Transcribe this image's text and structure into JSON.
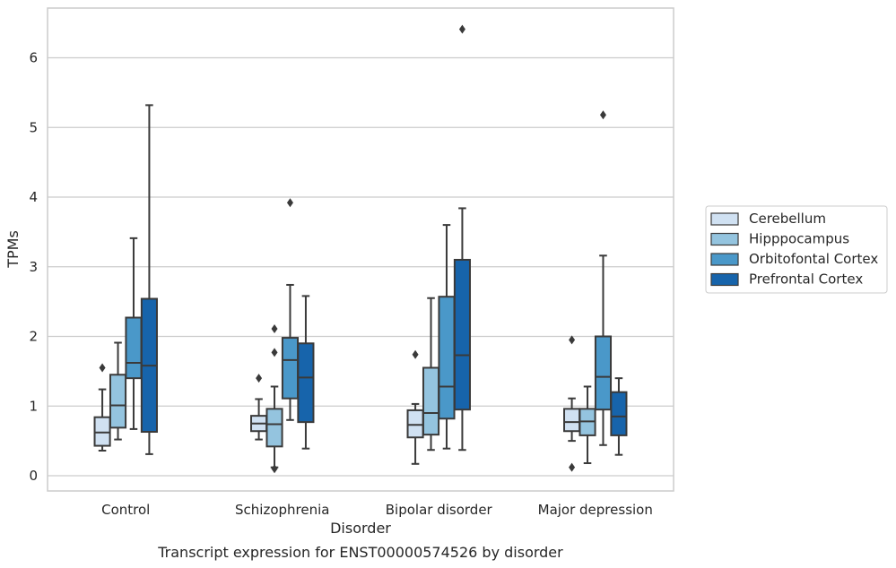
{
  "chart_data": {
    "type": "box",
    "title": "",
    "caption": "Transcript expression for ENST00000574526 by disorder",
    "xlabel": "Disorder",
    "ylabel": "TPMs",
    "ylim": [
      -0.2,
      6.9
    ],
    "yticks": [
      0,
      1,
      2,
      3,
      4,
      5,
      6
    ],
    "grid": "horizontal",
    "legend_position": "right",
    "categories": [
      "Control",
      "Schizophrenia",
      "Bipolar disorder",
      "Major depression"
    ],
    "series": [
      {
        "name": "Cerebellum",
        "color": "#d0e1f2",
        "boxes": [
          {
            "whislo": 0.36,
            "q1": 0.43,
            "med": 0.62,
            "q3": 0.84,
            "whishi": 1.24,
            "fliers": [
              1.55
            ]
          },
          {
            "whislo": 0.52,
            "q1": 0.64,
            "med": 0.75,
            "q3": 0.86,
            "whishi": 1.1,
            "fliers": [
              1.4
            ]
          },
          {
            "whislo": 0.17,
            "q1": 0.55,
            "med": 0.73,
            "q3": 0.94,
            "whishi": 1.03,
            "fliers": [
              1.74
            ]
          },
          {
            "whislo": 0.5,
            "q1": 0.64,
            "med": 0.77,
            "q3": 0.96,
            "whishi": 1.11,
            "fliers": [
              1.95,
              0.12
            ]
          }
        ]
      },
      {
        "name": "Hipppocampus",
        "color": "#94c4df",
        "boxes": [
          {
            "whislo": 0.52,
            "q1": 0.69,
            "med": 1.01,
            "q3": 1.45,
            "whishi": 1.91,
            "fliers": []
          },
          {
            "whislo": 0.12,
            "q1": 0.42,
            "med": 0.74,
            "q3": 0.96,
            "whishi": 1.28,
            "fliers": [
              2.11,
              1.77,
              0.1
            ]
          },
          {
            "whislo": 0.37,
            "q1": 0.59,
            "med": 0.9,
            "q3": 1.55,
            "whishi": 2.55,
            "fliers": []
          },
          {
            "whislo": 0.18,
            "q1": 0.58,
            "med": 0.78,
            "q3": 0.96,
            "whishi": 1.28,
            "fliers": []
          }
        ]
      },
      {
        "name": "Orbitofontal Cortex",
        "color": "#4a98c9",
        "boxes": [
          {
            "whislo": 0.67,
            "q1": 1.4,
            "med": 1.62,
            "q3": 2.27,
            "whishi": 3.41,
            "fliers": []
          },
          {
            "whislo": 0.8,
            "q1": 1.11,
            "med": 1.66,
            "q3": 1.98,
            "whishi": 2.74,
            "fliers": [
              3.92
            ]
          },
          {
            "whislo": 0.39,
            "q1": 0.82,
            "med": 1.28,
            "q3": 2.57,
            "whishi": 3.6,
            "fliers": []
          },
          {
            "whislo": 0.44,
            "q1": 0.95,
            "med": 1.42,
            "q3": 2.0,
            "whishi": 3.16,
            "fliers": [
              5.18
            ]
          }
        ]
      },
      {
        "name": "Prefrontal Cortex",
        "color": "#1764ab",
        "boxes": [
          {
            "whislo": 0.31,
            "q1": 0.63,
            "med": 1.58,
            "q3": 2.54,
            "whishi": 5.32,
            "fliers": []
          },
          {
            "whislo": 0.39,
            "q1": 0.77,
            "med": 1.41,
            "q3": 1.9,
            "whishi": 2.58,
            "fliers": []
          },
          {
            "whislo": 0.37,
            "q1": 0.95,
            "med": 1.73,
            "q3": 3.1,
            "whishi": 3.84,
            "fliers": [
              6.41
            ]
          },
          {
            "whislo": 0.3,
            "q1": 0.58,
            "med": 0.85,
            "q3": 1.2,
            "whishi": 1.4,
            "fliers": []
          }
        ]
      }
    ]
  }
}
